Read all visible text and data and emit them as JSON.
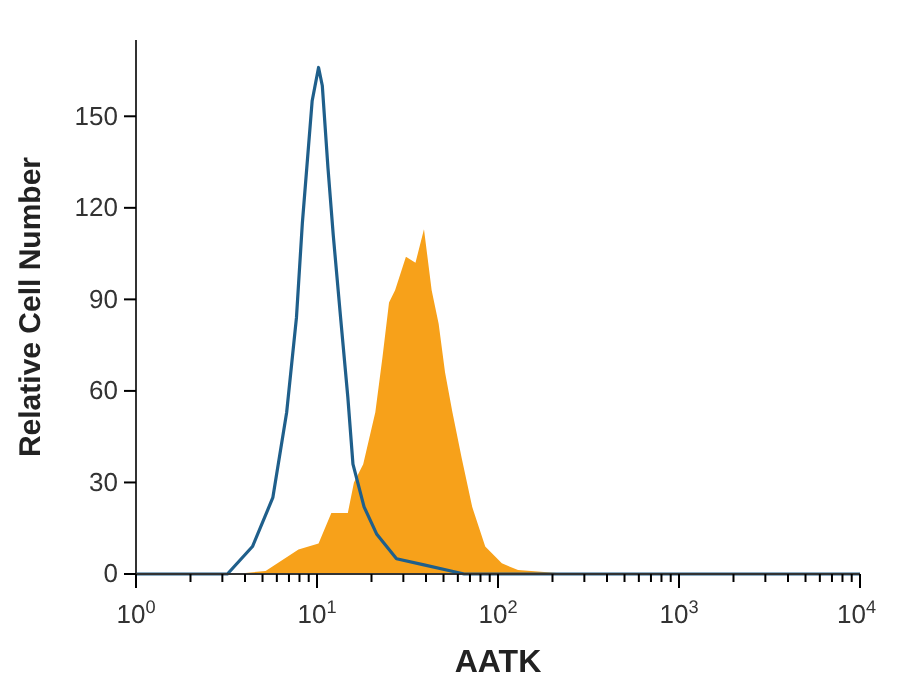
{
  "chart_data": {
    "type": "area",
    "xlabel": "AATK",
    "ylabel": "Relative Cell Number",
    "log": "x",
    "xlim": [
      1,
      10000
    ],
    "ylim": [
      0,
      175
    ],
    "xticks": [
      {
        "value": 1,
        "label": "10$^{0}$"
      },
      {
        "value": 2,
        "label": null
      },
      {
        "value": 3,
        "label": null
      },
      {
        "value": 4,
        "label": null
      },
      {
        "value": 5,
        "label": null
      },
      {
        "value": 6,
        "label": null
      },
      {
        "value": 7,
        "label": null
      },
      {
        "value": 8,
        "label": null
      },
      {
        "value": 9,
        "label": null
      },
      {
        "value": 10,
        "label": "10$^{1}$"
      },
      {
        "value": 20,
        "label": null
      },
      {
        "value": 30,
        "label": null
      },
      {
        "value": 40,
        "label": null
      },
      {
        "value": 50,
        "label": null
      },
      {
        "value": 60,
        "label": null
      },
      {
        "value": 70,
        "label": null
      },
      {
        "value": 80,
        "label": null
      },
      {
        "value": 90,
        "label": null
      },
      {
        "value": 100,
        "label": "10$^{2}$"
      },
      {
        "value": 200,
        "label": null
      },
      {
        "value": 300,
        "label": null
      },
      {
        "value": 400,
        "label": null
      },
      {
        "value": 500,
        "label": null
      },
      {
        "value": 600,
        "label": null
      },
      {
        "value": 700,
        "label": null
      },
      {
        "value": 800,
        "label": null
      },
      {
        "value": 900,
        "label": null
      },
      {
        "value": 1000,
        "label": "10$^{3}$"
      },
      {
        "value": 2000,
        "label": null
      },
      {
        "value": 3000,
        "label": null
      },
      {
        "value": 4000,
        "label": null
      },
      {
        "value": 5000,
        "label": null
      },
      {
        "value": 6000,
        "label": null
      },
      {
        "value": 7000,
        "label": null
      },
      {
        "value": 8000,
        "label": null
      },
      {
        "value": 9000,
        "label": null
      },
      {
        "value": 10000,
        "label": "10$^{4}$"
      }
    ],
    "yticks": [
      0,
      30,
      60,
      90,
      120,
      150
    ],
    "grid": false,
    "series": [
      {
        "color": "#f7a11a",
        "x": [
          3.5,
          5.2,
          7.9,
          10.2,
          12,
          14.8,
          16,
          18,
          21,
          23,
          25,
          27,
          31,
          35,
          39,
          43,
          47,
          51,
          56,
          63,
          72,
          85,
          105,
          129,
          250
        ],
        "values": [
          0,
          1,
          8,
          10,
          20,
          20,
          30,
          36,
          53,
          71,
          89,
          93,
          104,
          102,
          113,
          93,
          82,
          66,
          53,
          38,
          22,
          9,
          3.5,
          1.3,
          0
        ]
      },
      {
        "type": "line",
        "color": "#1f5f8b",
        "x": [
          1,
          3.2,
          4.4,
          5.7,
          6.8,
          7.7,
          8.3,
          9.4,
          10.2,
          10.7,
          11.5,
          12.3,
          13.5,
          14.8,
          15.8,
          18.2,
          21.4,
          27.5,
          39,
          55,
          65,
          10000
        ],
        "values": [
          0,
          0,
          9,
          25,
          53,
          84,
          115,
          155,
          166,
          160,
          133,
          111,
          84,
          58,
          36,
          22,
          13,
          5,
          3,
          1,
          0,
          0
        ]
      }
    ]
  }
}
